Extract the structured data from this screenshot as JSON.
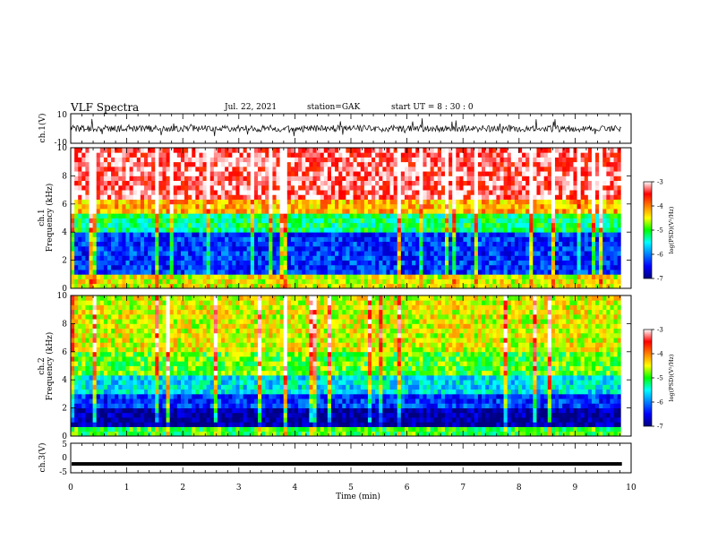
{
  "header": {
    "title": "VLF Spectra",
    "date": "Jul. 22, 2021",
    "station": "station=GAK",
    "start": "start UT =  8 : 30 : 0"
  },
  "chart_data": [
    {
      "type": "line",
      "panel": "ch.1 waveform",
      "ylabel": "ch.1(V)",
      "ylim": [
        -10,
        10
      ],
      "yticks": [
        "10",
        "-10"
      ],
      "xlim": [
        0,
        10
      ],
      "color": "#000000"
    },
    {
      "type": "heatmap",
      "panel": "ch.1 spectrogram",
      "ylabel_top": "ch.1",
      "ylabel": "Frequency (kHz)",
      "ylim": [
        0,
        10
      ],
      "yticks": [
        "0",
        "2",
        "4",
        "6",
        "8",
        "10"
      ],
      "xlim": [
        0,
        10
      ],
      "colorbar": {
        "label": "log(PSD)(V²/Hz)",
        "range": [
          -7,
          -3
        ],
        "ticks": [
          "-3",
          "-4",
          "-5",
          "-6",
          "-7"
        ]
      },
      "bands": [
        {
          "from_khz": 0,
          "to_khz": 1,
          "level": -4.5
        },
        {
          "from_khz": 1,
          "to_khz": 4,
          "level": -6.3
        },
        {
          "from_khz": 4,
          "to_khz": 5.5,
          "level": -5.2
        },
        {
          "from_khz": 5.5,
          "to_khz": 6.5,
          "level": -4.2
        },
        {
          "from_khz": 6.5,
          "to_khz": 10,
          "level": -3.3
        }
      ]
    },
    {
      "type": "heatmap",
      "panel": "ch.2 spectrogram",
      "ylabel_top": "ch.2",
      "ylabel": "Frequency (kHz)",
      "ylim": [
        0,
        10
      ],
      "yticks": [
        "0",
        "2",
        "4",
        "6",
        "8",
        "10"
      ],
      "xlim": [
        0,
        10
      ],
      "colorbar": {
        "label": "log(PSD)(V²/Hz)",
        "range": [
          -7,
          -3
        ],
        "ticks": [
          "-3",
          "-4",
          "-5",
          "-6",
          "-7"
        ]
      },
      "bands": [
        {
          "from_khz": 0,
          "to_khz": 0.8,
          "level": -5.0
        },
        {
          "from_khz": 0.8,
          "to_khz": 2,
          "level": -6.9
        },
        {
          "from_khz": 2,
          "to_khz": 3,
          "level": -6.3
        },
        {
          "from_khz": 3,
          "to_khz": 4.5,
          "level": -5.6
        },
        {
          "from_khz": 4.5,
          "to_khz": 6,
          "level": -4.9
        },
        {
          "from_khz": 6,
          "to_khz": 10,
          "level": -4.5
        }
      ]
    },
    {
      "type": "line",
      "panel": "ch.3 waveform",
      "ylabel": "ch.3(V)",
      "ylim": [
        -5,
        5
      ],
      "yticks": [
        "5",
        "0",
        "-5"
      ],
      "xlim": [
        0,
        10
      ],
      "level": -2,
      "xlabel": "Time (min)",
      "xticks": [
        "0",
        "1",
        "2",
        "3",
        "4",
        "5",
        "6",
        "7",
        "8",
        "9",
        "10"
      ],
      "color": "#000000"
    }
  ]
}
